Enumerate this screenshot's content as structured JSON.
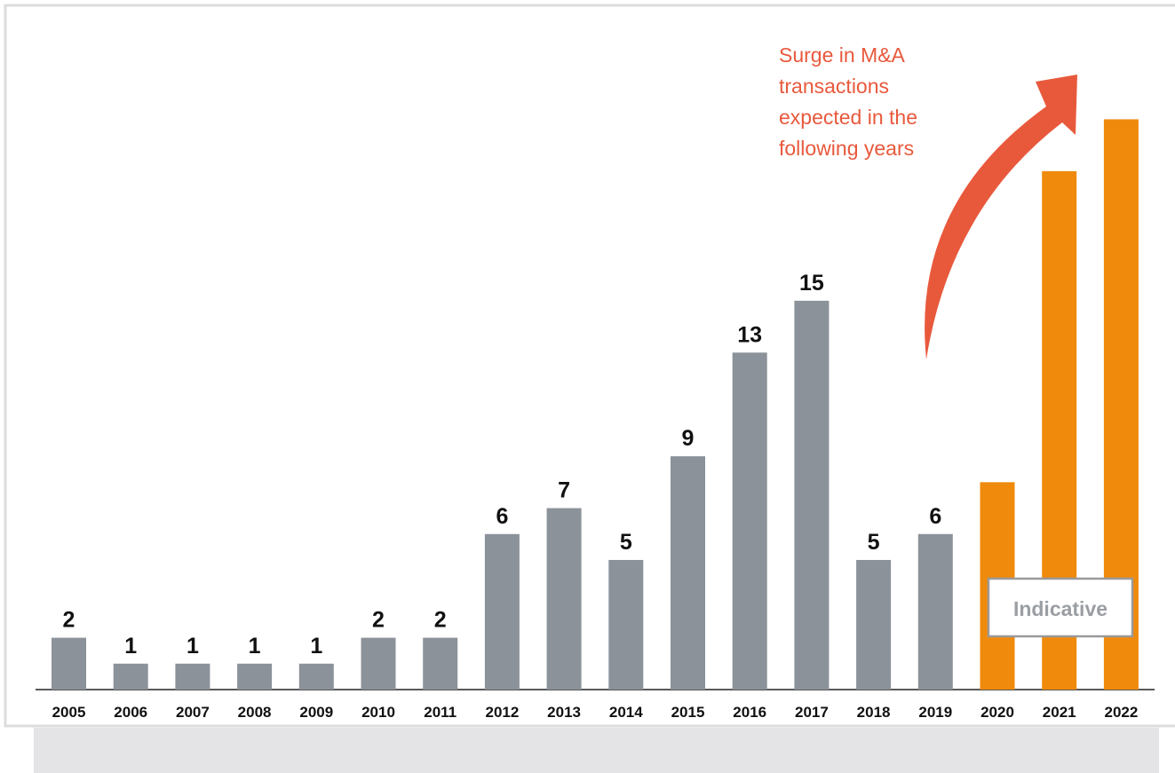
{
  "chart_data": {
    "type": "bar",
    "categories": [
      "2005",
      "2006",
      "2007",
      "2008",
      "2009",
      "2010",
      "2011",
      "2012",
      "2013",
      "2014",
      "2015",
      "2016",
      "2017",
      "2018",
      "2019",
      "2020",
      "2021",
      "2022"
    ],
    "values": [
      2,
      1,
      1,
      1,
      1,
      2,
      2,
      6,
      7,
      5,
      9,
      13,
      15,
      5,
      6,
      8,
      20,
      22
    ],
    "value_labels": [
      "2",
      "1",
      "1",
      "1",
      "1",
      "2",
      "2",
      "6",
      "7",
      "5",
      "9",
      "13",
      "15",
      "5",
      "6",
      null,
      null,
      null
    ],
    "colors": [
      "#8c9299",
      "#8c9299",
      "#8c9299",
      "#8c9299",
      "#8c9299",
      "#8c9299",
      "#8c9299",
      "#8c9299",
      "#8c9299",
      "#8c9299",
      "#8c9299",
      "#8c9299",
      "#8c9299",
      "#8c9299",
      "#8c9299",
      "#ef8a0c",
      "#ef8a0c",
      "#ef8a0c"
    ],
    "ylim": [
      0,
      24
    ],
    "annotation": [
      "Surge in M&A",
      "transactions",
      "expected in the",
      "following years"
    ],
    "annotation_color": "#e8593c",
    "box_label": "Indicative"
  }
}
